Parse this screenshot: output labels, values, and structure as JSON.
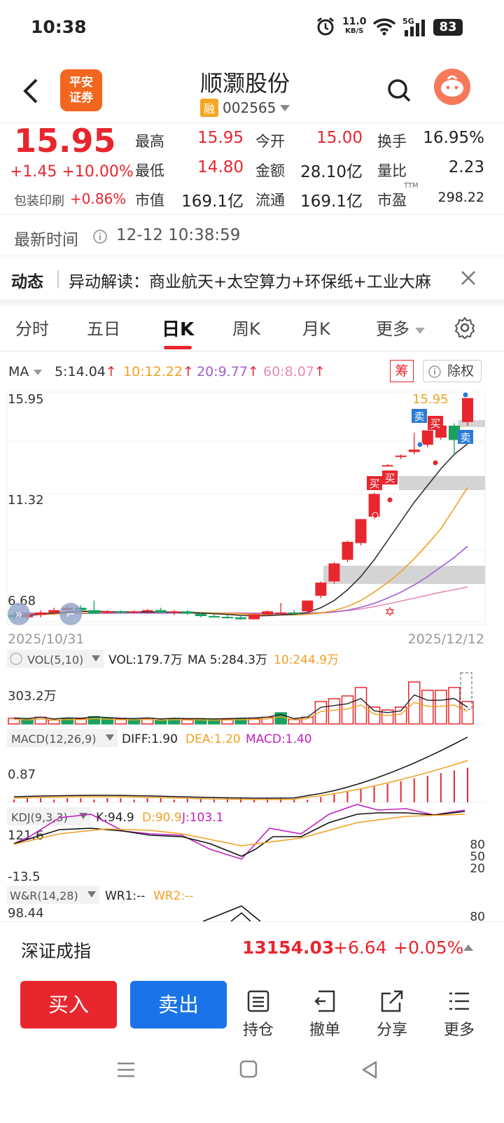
{
  "status": {
    "time": "10:38",
    "net_speed_top": "11.0",
    "net_speed_unit": "KB/S",
    "signal_label": "5G",
    "battery": "83"
  },
  "header": {
    "broker_logo": "平安\n证券",
    "title": "顺灏股份",
    "margin_badge": "融",
    "code": "002565"
  },
  "quote": {
    "price": "15.95",
    "change": "+1.45",
    "change_pct": "+10.00%",
    "sector_name": "包装印刷",
    "sector_pct": "+0.86%",
    "stats": [
      {
        "label": "最高",
        "value": "15.95",
        "color": "red"
      },
      {
        "label": "今开",
        "value": "15.00",
        "color": "red"
      },
      {
        "label": "换手",
        "value": "16.95%",
        "color": "black"
      },
      {
        "label": "最低",
        "value": "14.80",
        "color": "red"
      },
      {
        "label": "金额",
        "value": "28.10亿",
        "color": "black"
      },
      {
        "label": "量比",
        "value": "2.23",
        "color": "black"
      },
      {
        "label": "市值",
        "value": "169.1亿",
        "color": "black"
      },
      {
        "label": "流通",
        "value": "169.1亿",
        "color": "black"
      },
      {
        "label": "市盈",
        "value": "298.22",
        "color": "black",
        "sup": "TTM"
      }
    ]
  },
  "update": {
    "label": "最新时间",
    "time": "12-12 10:38:59"
  },
  "news": {
    "tag": "动态",
    "text": "异动解读：商业航天+太空算力+环保纸+工业大麻"
  },
  "tabs": [
    {
      "label": "分时",
      "active": false
    },
    {
      "label": "五日",
      "active": false
    },
    {
      "label": "日K",
      "active": true
    },
    {
      "label": "周K",
      "active": false
    },
    {
      "label": "月K",
      "active": false
    },
    {
      "label": "更多",
      "active": false
    }
  ],
  "ma_legend": {
    "title": "MA",
    "ma5": "5:14.04",
    "ma10": "10:12.22",
    "ma20": "20:9.77",
    "ma60": "60:8.07",
    "chip": "筹",
    "fq": "除权"
  },
  "chart_data": {
    "type": "candlestick",
    "y_ticks": [
      "15.95",
      "11.32",
      "6.68"
    ],
    "ylim": [
      6.68,
      15.95
    ],
    "start_date": "2025/10/31",
    "end_date": "2025/12/12",
    "max_price_label": "15.95",
    "signal_labels": [
      "卖",
      "买",
      "卖",
      "买",
      "买"
    ],
    "candles_ohlc": [
      [
        6.9,
        7.0,
        6.7,
        6.8
      ],
      [
        6.8,
        7.0,
        6.7,
        6.9
      ],
      [
        6.9,
        7.1,
        6.8,
        7.0
      ],
      [
        7.0,
        7.2,
        6.9,
        7.1
      ],
      [
        7.1,
        7.3,
        7.0,
        7.2
      ],
      [
        7.2,
        7.3,
        7.0,
        7.1
      ],
      [
        7.1,
        7.5,
        7.0,
        6.95
      ],
      [
        7.0,
        7.1,
        6.95,
        7.05
      ],
      [
        7.05,
        7.1,
        6.95,
        7.0
      ],
      [
        7.0,
        7.1,
        6.95,
        7.05
      ],
      [
        7.05,
        7.15,
        6.95,
        7.1
      ],
      [
        7.1,
        7.2,
        7.0,
        7.0
      ],
      [
        7.0,
        7.1,
        6.9,
        7.05
      ],
      [
        7.05,
        7.1,
        6.9,
        6.95
      ],
      [
        6.95,
        7.0,
        6.8,
        6.85
      ],
      [
        6.85,
        6.95,
        6.8,
        6.82
      ],
      [
        6.82,
        6.9,
        6.75,
        6.8
      ],
      [
        6.8,
        6.85,
        6.7,
        6.72
      ],
      [
        6.72,
        6.95,
        6.7,
        6.92
      ],
      [
        6.92,
        7.1,
        6.85,
        7.05
      ],
      [
        7.0,
        7.4,
        6.9,
        7.0
      ],
      [
        7.0,
        7.1,
        6.9,
        6.95
      ],
      [
        7.05,
        7.5,
        7.0,
        7.5
      ],
      [
        7.7,
        8.3,
        7.6,
        8.25
      ],
      [
        8.3,
        9.1,
        8.2,
        9.05
      ],
      [
        9.2,
        10.0,
        9.1,
        9.95
      ],
      [
        9.9,
        10.9,
        9.8,
        10.9
      ],
      [
        11.0,
        12.0,
        10.9,
        11.95
      ],
      [
        13.15,
        13.2,
        13.1,
        13.15
      ],
      [
        13.5,
        13.6,
        13.4,
        13.55
      ],
      [
        13.7,
        14.5,
        13.6,
        13.8
      ],
      [
        14.0,
        14.3,
        13.9,
        14.6
      ],
      [
        14.3,
        14.9,
        14.2,
        14.8
      ],
      [
        14.8,
        14.9,
        13.6,
        14.2
      ],
      [
        14.95,
        15.95,
        14.8,
        15.95
      ]
    ],
    "ma_series": {
      "ma5": [
        6.85,
        6.88,
        6.92,
        6.98,
        7.02,
        7.05,
        7.05,
        7.04,
        7.03,
        7.02,
        7.02,
        7.02,
        7.01,
        7.0,
        6.98,
        6.95,
        6.92,
        6.88,
        6.86,
        6.87,
        6.9,
        6.93,
        7.0,
        7.2,
        7.5,
        7.95,
        8.5,
        9.2,
        10.0,
        10.8,
        11.6,
        12.3,
        13.0,
        13.6,
        14.04
      ],
      "ma10": [
        6.9,
        6.9,
        6.92,
        6.94,
        6.96,
        6.98,
        7.0,
        7.01,
        7.02,
        7.02,
        7.02,
        7.02,
        7.02,
        7.01,
        7.0,
        6.98,
        6.96,
        6.94,
        6.92,
        6.91,
        6.9,
        6.9,
        6.92,
        6.98,
        7.08,
        7.25,
        7.5,
        7.85,
        8.25,
        8.7,
        9.25,
        9.85,
        10.5,
        11.35,
        12.22
      ],
      "ma20": [
        6.95,
        6.95,
        6.95,
        6.95,
        6.96,
        6.96,
        6.97,
        6.97,
        6.98,
        6.98,
        6.98,
        6.98,
        6.98,
        6.98,
        6.97,
        6.97,
        6.96,
        6.96,
        6.95,
        6.95,
        6.95,
        6.95,
        6.96,
        6.98,
        7.02,
        7.1,
        7.22,
        7.38,
        7.6,
        7.85,
        8.15,
        8.5,
        8.9,
        9.3,
        9.77
      ],
      "ma60": [
        6.98,
        6.98,
        6.98,
        6.98,
        6.98,
        6.98,
        6.98,
        6.98,
        6.98,
        6.98,
        6.98,
        6.98,
        6.98,
        6.98,
        6.98,
        6.98,
        6.98,
        6.98,
        6.98,
        6.98,
        6.98,
        6.98,
        6.99,
        7.0,
        7.03,
        7.08,
        7.15,
        7.25,
        7.35,
        7.48,
        7.6,
        7.72,
        7.85,
        7.95,
        8.07
      ]
    }
  },
  "vol": {
    "title": "VOL(5,10)",
    "v": "VOL:179.7万",
    "ma5": "MA 5:284.3万",
    "ma10": "10:244.9万",
    "tick": "303.2万",
    "bars": [
      0.1,
      0.08,
      0.12,
      0.07,
      0.1,
      0.09,
      0.13,
      0.11,
      0.09,
      0.08,
      0.1,
      0.07,
      0.09,
      0.08,
      0.08,
      0.07,
      0.08,
      0.09,
      0.1,
      0.12,
      0.2,
      0.08,
      0.12,
      0.4,
      0.45,
      0.5,
      0.65,
      0.3,
      0.25,
      0.3,
      0.75,
      0.6,
      0.6,
      0.65,
      0.4
    ],
    "up": [
      1,
      0,
      1,
      1,
      0,
      1,
      0,
      0,
      1,
      0,
      1,
      0,
      0,
      1,
      0,
      0,
      1,
      0,
      1,
      1,
      0,
      1,
      1,
      1,
      1,
      1,
      1,
      1,
      1,
      1,
      1,
      1,
      1,
      1,
      1
    ]
  },
  "macd": {
    "title": "MACD(12,26,9)",
    "diff": "DIFF:1.90",
    "dea": "DEA:1.20",
    "macd": "MACD:1.40",
    "tick": "0.87"
  },
  "kdj": {
    "title": "KDJ(9,3,3)",
    "k": "K:94.9",
    "d": "D:90.9",
    "j": "J:103.1",
    "tick_top": "121.6",
    "tick_bottom": "-13.5",
    "right_ticks": [
      "80",
      "50",
      "20"
    ]
  },
  "wr": {
    "title": "W&R(14,28)",
    "wr1": "WR1:--",
    "wr2": "WR2:--",
    "tick": "98.44",
    "right_tick": "80"
  },
  "index": {
    "name": "深证成指",
    "value": "13154.03",
    "change": "+6.64",
    "pct": "+0.05%"
  },
  "actions": {
    "buy": "买入",
    "sell": "卖出",
    "items": [
      "持仓",
      "撤单",
      "分享",
      "更多"
    ]
  },
  "colors": {
    "up": "#e8262e",
    "down": "#1aa260",
    "ma5": "#333333",
    "ma10": "#f0a020",
    "ma20": "#a060d0",
    "ma60": "#e88ab8",
    "sell_btn": "#1a73e8"
  }
}
